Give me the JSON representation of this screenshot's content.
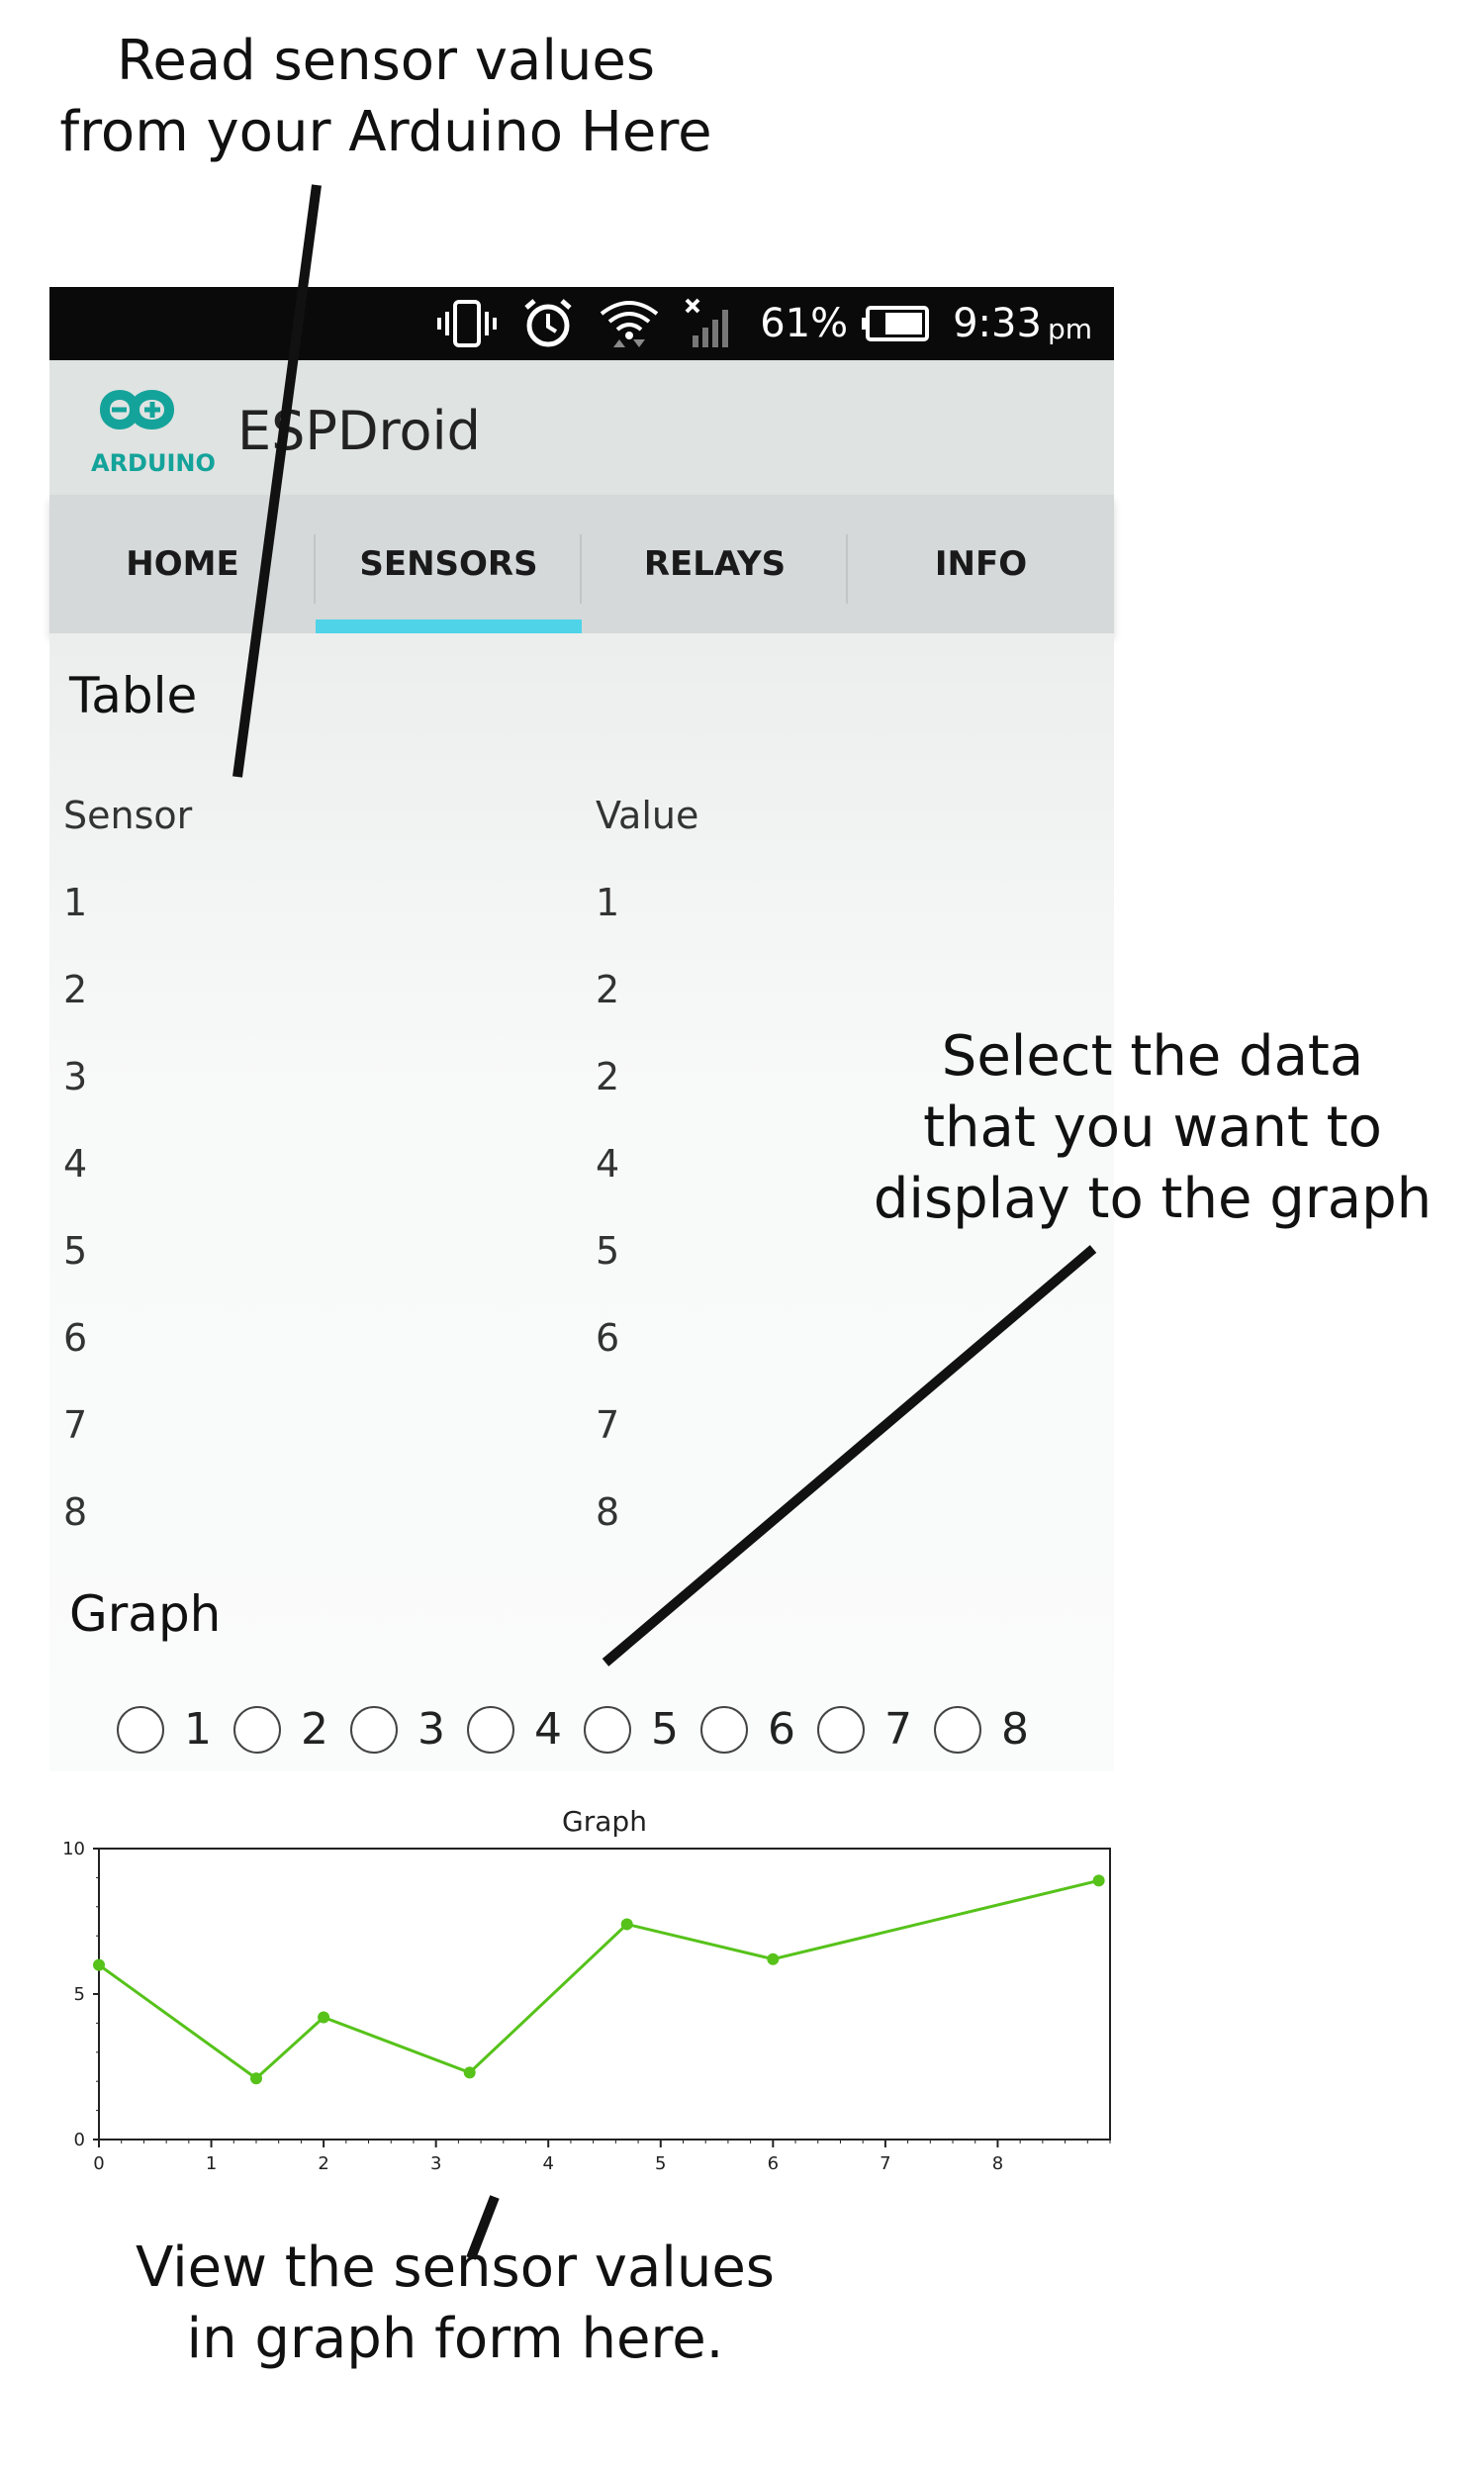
{
  "annotations": {
    "top": [
      "Read sensor values",
      "from your Arduino Here"
    ],
    "right": [
      "Select the data",
      "that you want to",
      "display to the graph"
    ],
    "bottom": [
      "View the sensor values",
      "in graph form here."
    ]
  },
  "status_bar": {
    "icons": [
      "vibrate-icon",
      "alarm-icon",
      "wifi-icon",
      "signal-icon",
      "battery-icon"
    ],
    "battery": "61%",
    "time": "9:33",
    "ampm": "pm"
  },
  "app_bar": {
    "logo_text": "ARDUINO",
    "title": "ESPDroid",
    "logo_color": "#14a39a"
  },
  "tabs": [
    {
      "label": "HOME"
    },
    {
      "label": "SENSORS",
      "selected": true
    },
    {
      "label": "RELAYS"
    },
    {
      "label": "INFO"
    }
  ],
  "accent_color": "#4fd3e8",
  "table": {
    "title": "Table",
    "headers": [
      "Sensor",
      "Value"
    ],
    "rows": [
      [
        "1",
        "1"
      ],
      [
        "2",
        "2"
      ],
      [
        "3",
        "2"
      ],
      [
        "4",
        "4"
      ],
      [
        "5",
        "5"
      ],
      [
        "6",
        "6"
      ],
      [
        "7",
        "7"
      ],
      [
        "8",
        "8"
      ]
    ]
  },
  "graph_section": {
    "title": "Graph",
    "radio_options": [
      "1",
      "2",
      "3",
      "4",
      "5",
      "6",
      "7",
      "8"
    ]
  },
  "chart_data": {
    "type": "line",
    "title": "Graph",
    "xlabel": "",
    "ylabel": "",
    "xlim": [
      0,
      9
    ],
    "ylim": [
      0,
      10
    ],
    "x_ticks": [
      0,
      1,
      2,
      3,
      4,
      5,
      6,
      7,
      8
    ],
    "y_ticks": [
      0,
      5,
      10
    ],
    "grid": false,
    "line_color": "#56c21a",
    "series": [
      {
        "x": [
          0,
          1.4,
          2,
          3.3,
          4.7,
          6,
          8.9
        ],
        "y": [
          6,
          2.1,
          4.2,
          2.3,
          7.4,
          6.2,
          8.9
        ]
      }
    ]
  }
}
